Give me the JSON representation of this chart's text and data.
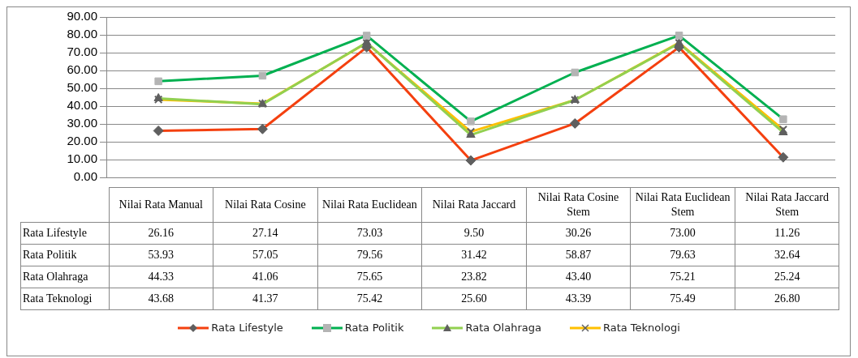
{
  "chart_data": {
    "type": "line",
    "categories": [
      "Nilai Rata Manual",
      "Nilai Rata Cosine",
      "Nilai Rata Euclidean",
      "Nilai Rata Jaccard",
      "Nilai Rata Cosine Stem",
      "Nilai Rata Euclidean Stem",
      "Nilai Rata Jaccard Stem"
    ],
    "series": [
      {
        "name": "Rata Lifestyle",
        "color": "#f4400f",
        "marker": "diamond",
        "values": [
          26.16,
          27.14,
          73.03,
          9.5,
          30.26,
          73.0,
          11.26
        ],
        "value_labels": [
          "26.16",
          "27.14",
          "73.03",
          "9.50",
          "30.26",
          "73.00",
          "11.26"
        ]
      },
      {
        "name": "Rata Politik",
        "color": "#00b050",
        "marker": "square",
        "values": [
          53.93,
          57.05,
          79.56,
          31.42,
          58.87,
          79.63,
          32.64
        ],
        "value_labels": [
          "53.93",
          "57.05",
          "79.56",
          "31.42",
          "58.87",
          "79.63",
          "32.64"
        ]
      },
      {
        "name": "Rata Olahraga",
        "color": "#92d050",
        "marker": "triangle",
        "values": [
          44.33,
          41.06,
          75.65,
          23.82,
          43.4,
          75.21,
          25.24
        ],
        "value_labels": [
          "44.33",
          "41.06",
          "75.65",
          "23.82",
          "43.40",
          "75.21",
          "25.24"
        ]
      },
      {
        "name": "Rata Teknologi",
        "color": "#ffc000",
        "marker": "cross",
        "values": [
          43.68,
          41.37,
          75.42,
          25.6,
          43.39,
          75.49,
          26.8
        ],
        "value_labels": [
          "43.68",
          "41.37",
          "75.42",
          "25.60",
          "43.39",
          "75.49",
          "26.80"
        ]
      }
    ],
    "ylim": [
      0,
      90
    ],
    "yticks": [
      {
        "value": 0,
        "label": "0.00"
      },
      {
        "value": 10,
        "label": "10.00"
      },
      {
        "value": 20,
        "label": "20.00"
      },
      {
        "value": 30,
        "label": "30.00"
      },
      {
        "value": 40,
        "label": "40.00"
      },
      {
        "value": 50,
        "label": "50.00"
      },
      {
        "value": 60,
        "label": "60.00"
      },
      {
        "value": 70,
        "label": "70.00"
      },
      {
        "value": 80,
        "label": "80.00"
      },
      {
        "value": 90,
        "label": "90.00"
      }
    ],
    "grid": "y",
    "legend": "bottom"
  }
}
